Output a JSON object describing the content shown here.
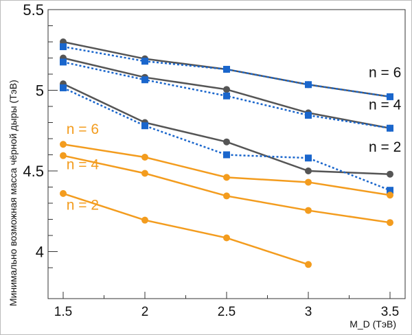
{
  "chart_data": {
    "type": "line",
    "title": "",
    "xlabel": "M_D (ТэВ)",
    "xlabel_main": "M",
    "xlabel_sub": "D",
    "xlabel_unit": " (ТэВ)",
    "ylabel": "Минимально возможная масса чёрной дыры (ТэВ)",
    "xlim": [
      1.4,
      3.6
    ],
    "ylim": [
      3.86,
      5.5
    ],
    "xticks": [
      1.5,
      2,
      2.5,
      3,
      3.5
    ],
    "xtick_labels": [
      "1.5",
      "2",
      "2.5",
      "3",
      "3.5"
    ],
    "yticks": [
      4,
      4.5,
      5,
      5.5
    ],
    "ytick_labels": [
      "4",
      "4.5",
      "5",
      "5.5"
    ],
    "grid": false,
    "series": [
      {
        "name": "gray n=6",
        "color": "#555555",
        "marker": "circle",
        "dash": false,
        "x": [
          1.5,
          2,
          2.5,
          3,
          3.5
        ],
        "y": [
          5.3,
          5.195,
          5.13,
          5.035,
          4.96
        ]
      },
      {
        "name": "blue n=6",
        "color": "#1a66cc",
        "marker": "square",
        "dash": true,
        "x": [
          1.5,
          2,
          2.5,
          3,
          3.5
        ],
        "y": [
          5.27,
          5.18,
          5.13,
          5.035,
          4.96
        ]
      },
      {
        "name": "gray n=4",
        "color": "#555555",
        "marker": "circle",
        "dash": false,
        "x": [
          1.5,
          2,
          2.5,
          3,
          3.5
        ],
        "y": [
          5.2,
          5.08,
          5.005,
          4.86,
          4.765
        ]
      },
      {
        "name": "blue n=4",
        "color": "#1a66cc",
        "marker": "square",
        "dash": true,
        "x": [
          1.5,
          2,
          2.5,
          3,
          3.5
        ],
        "y": [
          5.175,
          5.065,
          4.965,
          4.845,
          4.765
        ]
      },
      {
        "name": "gray n=2",
        "color": "#555555",
        "marker": "circle",
        "dash": false,
        "x": [
          1.5,
          2,
          2.5,
          3,
          3.5
        ],
        "y": [
          5.04,
          4.8,
          4.68,
          4.5,
          4.48
        ]
      },
      {
        "name": "blue n=2",
        "color": "#1a66cc",
        "marker": "square",
        "dash": true,
        "x": [
          1.5,
          2,
          2.5,
          3,
          3.5
        ],
        "y": [
          5.015,
          4.78,
          4.6,
          4.58,
          4.38
        ]
      },
      {
        "name": "orange n=6",
        "color": "#f39c1e",
        "marker": "circle",
        "dash": false,
        "x": [
          1.5,
          2,
          2.5,
          3,
          3.5
        ],
        "y": [
          4.665,
          4.585,
          4.46,
          4.43,
          4.35
        ]
      },
      {
        "name": "orange n=4",
        "color": "#f39c1e",
        "marker": "circle",
        "dash": false,
        "x": [
          1.5,
          2,
          2.5,
          3,
          3.5
        ],
        "y": [
          4.595,
          4.485,
          4.345,
          4.255,
          4.18
        ]
      },
      {
        "name": "orange n=2",
        "color": "#f39c1e",
        "marker": "circle",
        "dash": false,
        "x": [
          1.5,
          2,
          2.5,
          3
        ],
        "y": [
          4.36,
          4.195,
          4.085,
          3.92
        ]
      }
    ],
    "annotations": [
      {
        "text": "n = 6",
        "color": "#111111",
        "x": 3.37,
        "y": 5.08
      },
      {
        "text": "n = 4",
        "color": "#111111",
        "x": 3.37,
        "y": 4.88
      },
      {
        "text": "n = 2",
        "color": "#111111",
        "x": 3.37,
        "y": 4.62
      },
      {
        "text": "n = 6",
        "color": "#f39c1e",
        "x": 1.52,
        "y": 4.73
      },
      {
        "text": "n = 4",
        "color": "#f39c1e",
        "x": 1.52,
        "y": 4.51
      },
      {
        "text": "n = 2",
        "color": "#f39c1e",
        "x": 1.52,
        "y": 4.26
      }
    ]
  }
}
